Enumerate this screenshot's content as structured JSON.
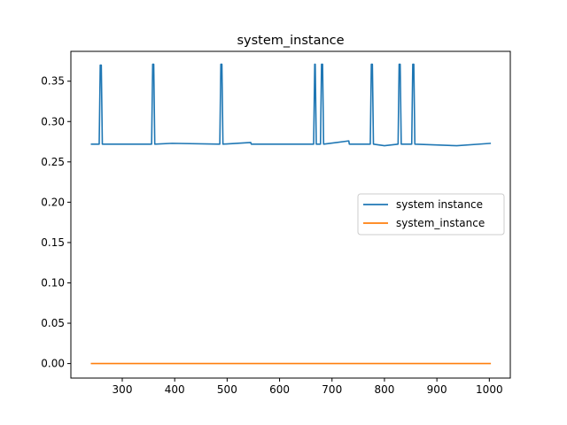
{
  "chart_data": {
    "type": "line",
    "title": "system_instance",
    "xlabel": "",
    "ylabel": "",
    "xlim": [
      202,
      1040
    ],
    "ylim": [
      -0.018,
      0.387
    ],
    "xticks": [
      300,
      400,
      500,
      600,
      700,
      800,
      900,
      1000
    ],
    "yticks": [
      0.0,
      0.05,
      0.1,
      0.15,
      0.2,
      0.25,
      0.3,
      0.35
    ],
    "ytick_labels": [
      "0.00",
      "0.05",
      "0.10",
      "0.15",
      "0.20",
      "0.25",
      "0.30",
      "0.35"
    ],
    "grid": false,
    "legend_position": "center-right",
    "series": [
      {
        "name": "system instance",
        "color": "#1f77b4",
        "x": [
          240,
          256,
          258,
          260,
          262,
          356,
          358,
          360,
          362,
          395,
          486,
          488,
          490,
          492,
          545,
          546,
          665,
          667,
          668,
          670,
          678,
          680,
          682,
          684,
          732,
          733,
          773,
          775,
          777,
          779,
          800,
          826,
          828,
          830,
          832,
          852,
          854,
          856,
          858,
          938,
          1003
        ],
        "y": [
          0.272,
          0.272,
          0.37,
          0.37,
          0.272,
          0.272,
          0.371,
          0.371,
          0.272,
          0.273,
          0.272,
          0.371,
          0.371,
          0.272,
          0.274,
          0.272,
          0.272,
          0.371,
          0.371,
          0.272,
          0.272,
          0.371,
          0.371,
          0.272,
          0.276,
          0.272,
          0.272,
          0.371,
          0.371,
          0.272,
          0.27,
          0.272,
          0.371,
          0.371,
          0.272,
          0.272,
          0.371,
          0.371,
          0.272,
          0.27,
          0.273
        ]
      },
      {
        "name": "system_instance",
        "color": "#ff7f0e",
        "x": [
          240,
          1003
        ],
        "y": [
          0.0,
          0.0
        ]
      }
    ]
  }
}
